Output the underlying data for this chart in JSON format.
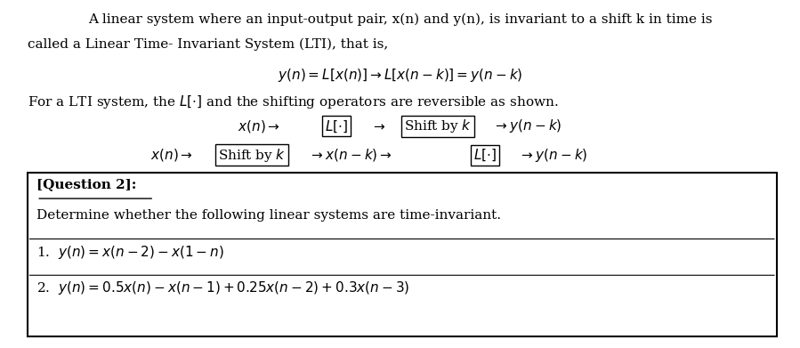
{
  "bg_color": "#ffffff",
  "text_color": "#000000",
  "fig_width": 8.99,
  "fig_height": 3.91,
  "line1": "A linear system where an input-output pair, x(n) and y(n), is invariant to a shift k in time is",
  "line2": "called a Linear Time- Invariant System (LTI), that is,",
  "eq1": "$y(n) = L[x(n)] \\rightarrow L[x(n - k)] = y(n - k)$",
  "line3": "For a LTI system, the $L[\\cdot]$ and the shifting operators are reversible as shown.",
  "box_title": "[Question 2]:",
  "box_line1": "Determine whether the following linear systems are time-invariant.",
  "box_eq1": "1.  $y(n) = x(n-2) - x(1-n)$",
  "box_eq2": "2.  $y(n) = 0.5x(n) - x(n-1) + 0.25x(n-2) + 0.3x(n-3)$"
}
